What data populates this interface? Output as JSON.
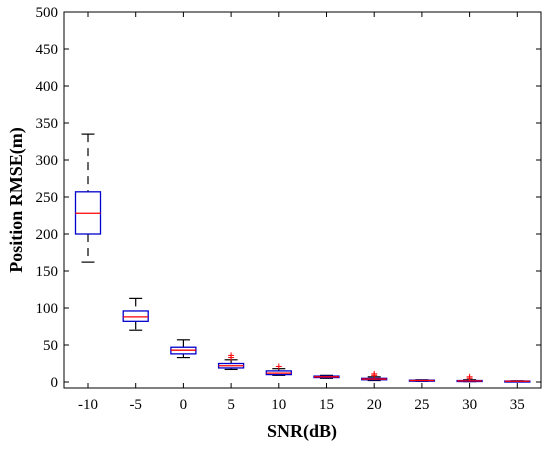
{
  "chart_data": {
    "type": "boxplot",
    "title": "",
    "xlabel": "SNR(dB)",
    "ylabel": "Position RMSE(m)",
    "ylim": [
      0,
      500
    ],
    "yticks": [
      0,
      50,
      100,
      150,
      200,
      250,
      300,
      350,
      400,
      450,
      500
    ],
    "categories": [
      "-10",
      "-5",
      "0",
      "5",
      "10",
      "15",
      "20",
      "25",
      "30",
      "35"
    ],
    "grid": false,
    "boxes": [
      {
        "label": "-10",
        "min": 162,
        "q1": 200,
        "median": 228,
        "q3": 257,
        "max": 335,
        "outliers": []
      },
      {
        "label": "-5",
        "min": 70,
        "q1": 82,
        "median": 88,
        "q3": 96,
        "max": 113,
        "outliers": []
      },
      {
        "label": "0",
        "min": 33,
        "q1": 38,
        "median": 43,
        "q3": 47,
        "max": 57,
        "outliers": []
      },
      {
        "label": "5",
        "min": 17,
        "q1": 19,
        "median": 22,
        "q3": 25,
        "max": 30,
        "outliers": [
          33,
          36
        ]
      },
      {
        "label": "10",
        "min": 9,
        "q1": 10,
        "median": 12,
        "q3": 15,
        "max": 18,
        "outliers": [
          21
        ]
      },
      {
        "label": "15",
        "min": 5,
        "q1": 6,
        "median": 7,
        "q3": 8,
        "max": 9,
        "outliers": []
      },
      {
        "label": "20",
        "min": 2,
        "q1": 3,
        "median": 4,
        "q3": 5,
        "max": 7,
        "outliers": [
          9,
          11
        ]
      },
      {
        "label": "25",
        "min": 1,
        "q1": 1.5,
        "median": 2,
        "q3": 2.5,
        "max": 3,
        "outliers": []
      },
      {
        "label": "30",
        "min": 0.5,
        "q1": 1,
        "median": 1.5,
        "q3": 2,
        "max": 3,
        "outliers": [
          5,
          7
        ]
      },
      {
        "label": "35",
        "min": 0.5,
        "q1": 0.8,
        "median": 1,
        "q3": 1.3,
        "max": 1.6,
        "outliers": []
      }
    ],
    "colors": {
      "box": "#0000cc",
      "median": "#ff0000",
      "whisker": "#000000",
      "outlier": "#ff0000",
      "axis": "#000000"
    }
  }
}
